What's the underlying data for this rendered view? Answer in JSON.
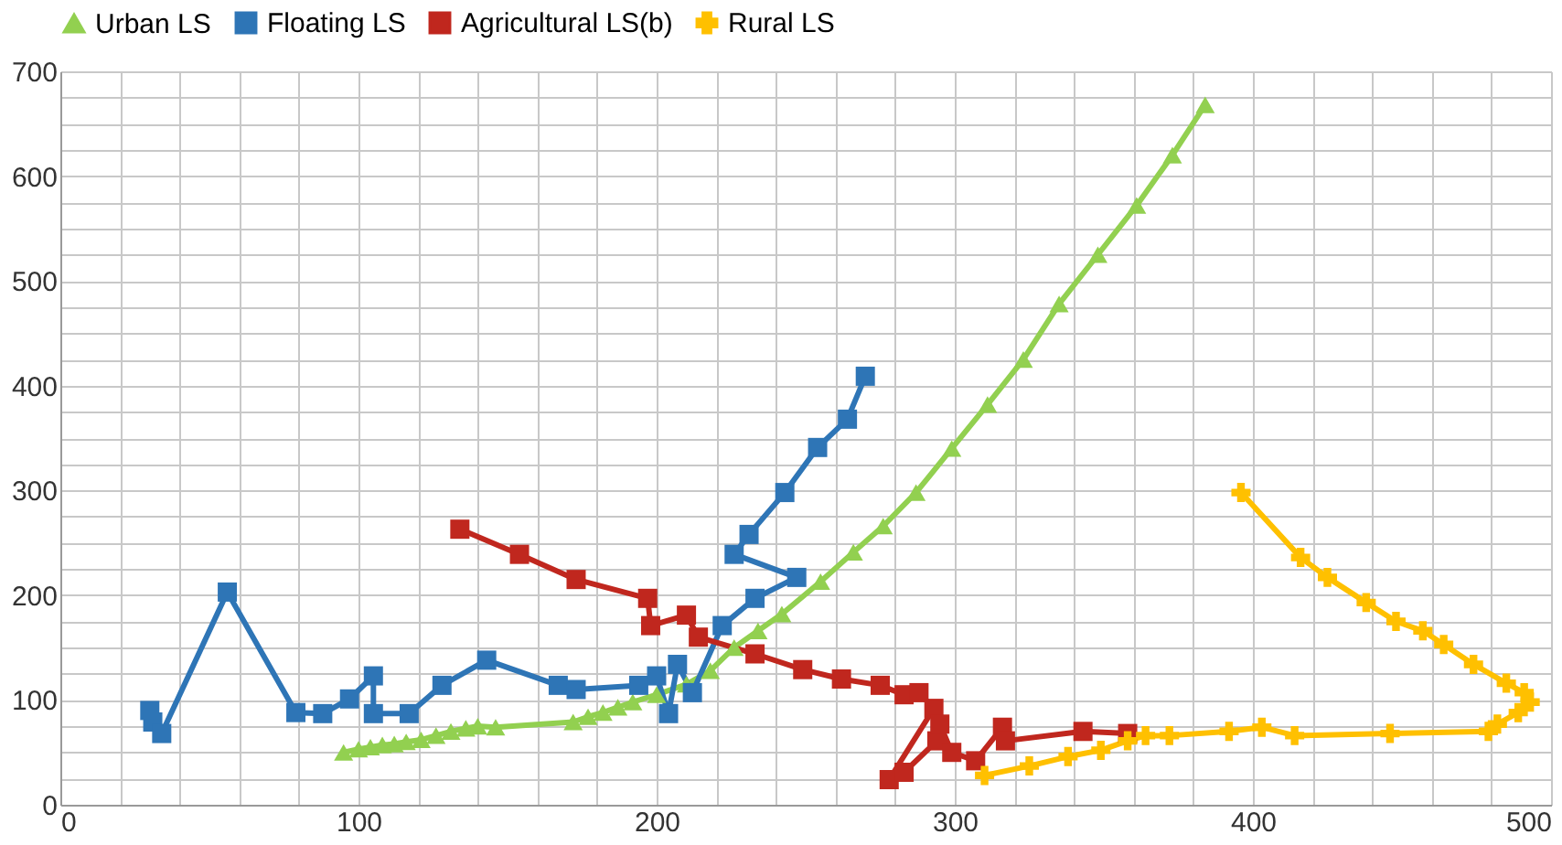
{
  "chart_data": {
    "type": "line",
    "legend": "top",
    "grid": true,
    "line_style": "solid",
    "xlim": [
      0,
      500
    ],
    "ylim": [
      0,
      700
    ],
    "xticks": [
      0,
      {
        "value": 20,
        "label": null
      },
      {
        "value": 40,
        "label": null
      },
      {
        "value": 60,
        "label": null
      },
      {
        "value": 80,
        "label": null
      },
      100,
      {
        "value": 120,
        "label": null
      },
      {
        "value": 140,
        "label": null
      },
      {
        "value": 160,
        "label": null
      },
      {
        "value": 180,
        "label": null
      },
      200,
      {
        "value": 220,
        "label": null
      },
      {
        "value": 240,
        "label": null
      },
      {
        "value": 260,
        "label": null
      },
      {
        "value": 280,
        "label": null
      },
      300,
      {
        "value": 320,
        "label": null
      },
      {
        "value": 340,
        "label": null
      },
      {
        "value": 360,
        "label": null
      },
      {
        "value": 380,
        "label": null
      },
      400,
      {
        "value": 420,
        "label": null
      },
      {
        "value": 440,
        "label": null
      },
      {
        "value": 460,
        "label": null
      },
      {
        "value": 480,
        "label": null
      },
      500
    ],
    "yticks": [
      0,
      {
        "value": 25,
        "label": null
      },
      {
        "value": 50,
        "label": null
      },
      {
        "value": 75,
        "label": null
      },
      100,
      {
        "value": 125,
        "label": null
      },
      {
        "value": 150,
        "label": null
      },
      {
        "value": 175,
        "label": null
      },
      200,
      {
        "value": 225,
        "label": null
      },
      {
        "value": 250,
        "label": null
      },
      {
        "value": 275,
        "label": null
      },
      300,
      {
        "value": 325,
        "label": null
      },
      {
        "value": 350,
        "label": null
      },
      {
        "value": 375,
        "label": null
      },
      400,
      {
        "value": 425,
        "label": null
      },
      {
        "value": 450,
        "label": null
      },
      {
        "value": 475,
        "label": null
      },
      500,
      {
        "value": 525,
        "label": null
      },
      {
        "value": 550,
        "label": null
      },
      {
        "value": 575,
        "label": null
      },
      600,
      {
        "value": 625,
        "label": null
      },
      {
        "value": 650,
        "label": null
      },
      {
        "value": 675,
        "label": null
      },
      700
    ],
    "series": [
      {
        "name": "Urban LS",
        "color": "#92d050",
        "marker": "triangle",
        "x": [
          95,
          100,
          104,
          108,
          112,
          116,
          121,
          126,
          131,
          136,
          140,
          146,
          172,
          177,
          182,
          187,
          192,
          200,
          210,
          218,
          226,
          234,
          242,
          255,
          266,
          276,
          287,
          299,
          311,
          323,
          335,
          348,
          361,
          373,
          384
        ],
        "values": [
          50,
          53,
          55,
          57,
          58,
          60,
          62,
          66,
          70,
          73,
          75,
          74,
          79,
          84,
          88,
          93,
          98,
          105,
          115,
          128,
          150,
          166,
          182,
          213,
          241,
          266,
          298,
          340,
          382,
          425,
          478,
          525,
          572,
          620,
          668
        ]
      },
      {
        "name": "Floating LS",
        "color": "#2e75b6",
        "marker": "square",
        "x": [
          30,
          31,
          34,
          56,
          79,
          88,
          97,
          105,
          105,
          117,
          128,
          143,
          167,
          173,
          194,
          200,
          204,
          207,
          212,
          222,
          233,
          247,
          226,
          231,
          243,
          254,
          264,
          270
        ],
        "values": [
          90,
          79,
          68,
          203,
          88,
          87,
          101,
          123,
          87,
          87,
          114,
          138,
          114,
          110,
          114,
          123,
          87,
          134,
          107,
          171,
          197,
          217,
          239,
          258,
          298,
          341,
          368,
          409
        ]
      },
      {
        "name": "Agricultural LS(b)",
        "color": "#c0271e",
        "marker": "square",
        "x": [
          134,
          154,
          173,
          197,
          198,
          210,
          214,
          233,
          249,
          262,
          275,
          283,
          288,
          293,
          278,
          283,
          294,
          295,
          299,
          307,
          316,
          317,
          343,
          358
        ],
        "values": [
          263,
          239,
          215,
          197,
          171,
          181,
          160,
          144,
          129,
          120,
          114,
          105,
          107,
          92,
          24,
          31,
          61,
          77,
          50,
          42,
          74,
          61,
          70,
          68
        ]
      },
      {
        "name": "Rural LS",
        "color": "#ffc000",
        "marker": "cross",
        "x": [
          396,
          416,
          425,
          438,
          448,
          457,
          464,
          474,
          485,
          491,
          493,
          489,
          482,
          479,
          446,
          414,
          403,
          392,
          372,
          364,
          358,
          349,
          338,
          325,
          310
        ],
        "values": [
          298,
          236,
          217,
          193,
          175,
          166,
          153,
          134,
          116,
          107,
          98,
          88,
          77,
          70,
          68,
          66,
          74,
          70,
          66,
          66,
          61,
          52,
          46,
          37,
          28
        ]
      }
    ]
  }
}
